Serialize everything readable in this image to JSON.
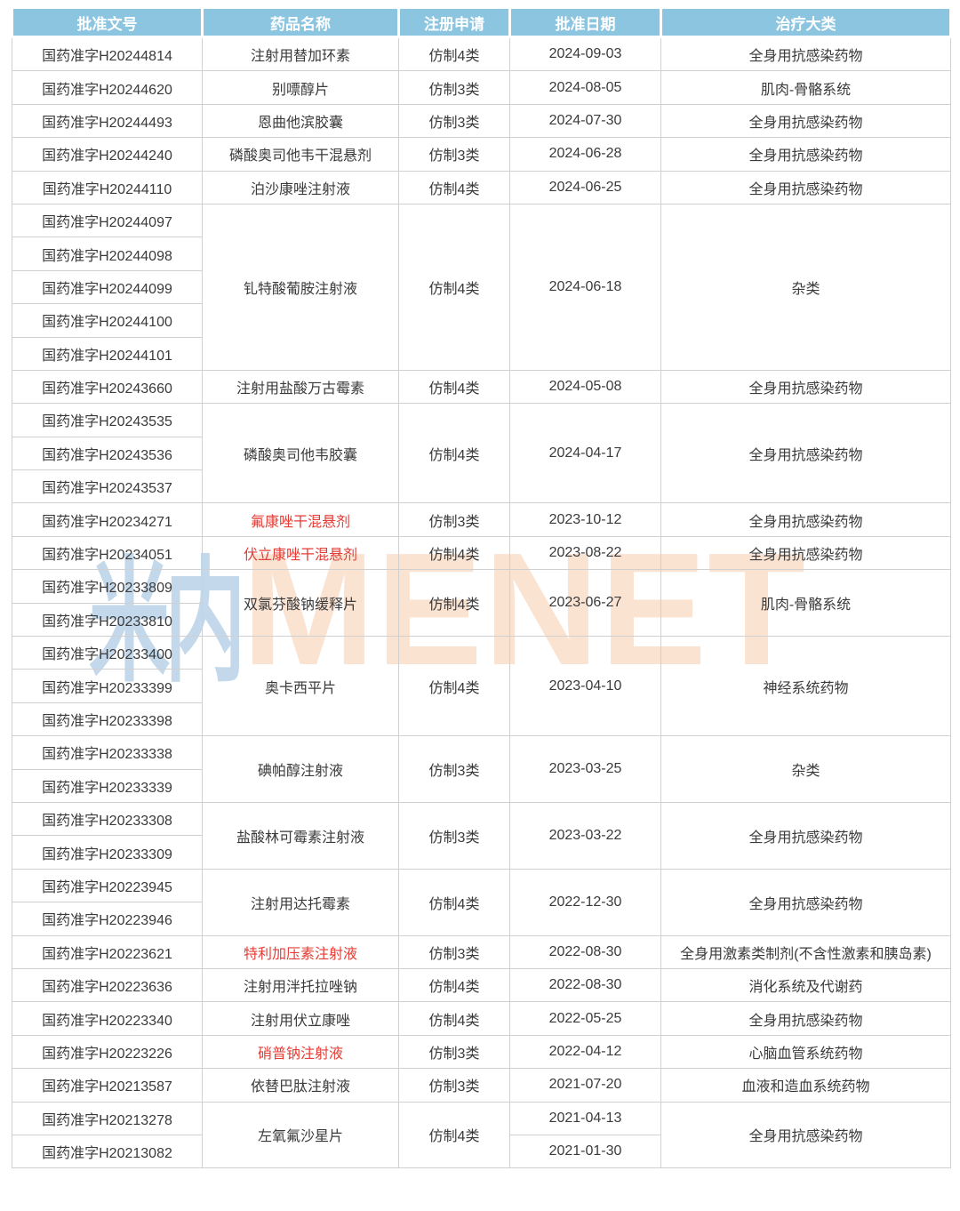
{
  "colors": {
    "header_bg": "#8cc5e0",
    "header_text": "#ffffff",
    "body_text": "#3a3a3a",
    "red_drug_name": "#e53c35",
    "cell_border": "#d0d0d0",
    "watermark_cn_blue": "#92b8d8",
    "watermark_en_orange": "#f3a26a"
  },
  "watermark": {
    "cn": "米内",
    "en": "MENET"
  },
  "table": {
    "columns": [
      {
        "id": "approval-no",
        "label": "批准文号"
      },
      {
        "id": "drug-name",
        "label": "药品名称"
      },
      {
        "id": "registration-type",
        "label": "注册申请"
      },
      {
        "id": "approval-date",
        "label": "批准日期"
      },
      {
        "id": "therapeutic-category",
        "label": "治疗大类"
      }
    ],
    "groups": [
      {
        "approvals": [
          "国药准字H20244814"
        ],
        "drug": "注射用替加环素",
        "red": false,
        "reg": "仿制4类",
        "dates": [
          "2024-09-03"
        ],
        "category": "全身用抗感染药物"
      },
      {
        "approvals": [
          "国药准字H20244620"
        ],
        "drug": "别嘌醇片",
        "red": false,
        "reg": "仿制3类",
        "dates": [
          "2024-08-05"
        ],
        "category": "肌肉-骨骼系统"
      },
      {
        "approvals": [
          "国药准字H20244493"
        ],
        "drug": "恩曲他滨胶囊",
        "red": false,
        "reg": "仿制3类",
        "dates": [
          "2024-07-30"
        ],
        "category": "全身用抗感染药物"
      },
      {
        "approvals": [
          "国药准字H20244240"
        ],
        "drug": "磷酸奥司他韦干混悬剂",
        "red": false,
        "reg": "仿制3类",
        "dates": [
          "2024-06-28"
        ],
        "category": "全身用抗感染药物"
      },
      {
        "approvals": [
          "国药准字H20244110"
        ],
        "drug": "泊沙康唑注射液",
        "red": false,
        "reg": "仿制4类",
        "dates": [
          "2024-06-25"
        ],
        "category": "全身用抗感染药物"
      },
      {
        "approvals": [
          "国药准字H20244097",
          "国药准字H20244098",
          "国药准字H20244099",
          "国药准字H20244100",
          "国药准字H20244101"
        ],
        "drug": "钆特酸葡胺注射液",
        "red": false,
        "reg": "仿制4类",
        "dates": [
          "2024-06-18"
        ],
        "category": "杂类"
      },
      {
        "approvals": [
          "国药准字H20243660"
        ],
        "drug": "注射用盐酸万古霉素",
        "red": false,
        "reg": "仿制4类",
        "dates": [
          "2024-05-08"
        ],
        "category": "全身用抗感染药物"
      },
      {
        "approvals": [
          "国药准字H20243535",
          "国药准字H20243536",
          "国药准字H20243537"
        ],
        "drug": "磷酸奥司他韦胶囊",
        "red": false,
        "reg": "仿制4类",
        "dates": [
          "2024-04-17"
        ],
        "category": "全身用抗感染药物"
      },
      {
        "approvals": [
          "国药准字H20234271"
        ],
        "drug": "氟康唑干混悬剂",
        "red": true,
        "reg": "仿制3类",
        "dates": [
          "2023-10-12"
        ],
        "category": "全身用抗感染药物"
      },
      {
        "approvals": [
          "国药准字H20234051"
        ],
        "drug": "伏立康唑干混悬剂",
        "red": true,
        "reg": "仿制4类",
        "dates": [
          "2023-08-22"
        ],
        "category": "全身用抗感染药物"
      },
      {
        "approvals": [
          "国药准字H20233809",
          "国药准字H20233810"
        ],
        "drug": "双氯芬酸钠缓释片",
        "red": false,
        "reg": "仿制4类",
        "dates": [
          "2023-06-27"
        ],
        "category": "肌肉-骨骼系统"
      },
      {
        "approvals": [
          "国药准字H20233400",
          "国药准字H20233399",
          "国药准字H20233398"
        ],
        "drug": "奥卡西平片",
        "red": false,
        "reg": "仿制4类",
        "dates": [
          "2023-04-10"
        ],
        "category": "神经系统药物"
      },
      {
        "approvals": [
          "国药准字H20233338",
          "国药准字H20233339"
        ],
        "drug": "碘帕醇注射液",
        "red": false,
        "reg": "仿制3类",
        "dates": [
          "2023-03-25"
        ],
        "category": "杂类"
      },
      {
        "approvals": [
          "国药准字H20233308",
          "国药准字H20233309"
        ],
        "drug": "盐酸林可霉素注射液",
        "red": false,
        "reg": "仿制3类",
        "dates": [
          "2023-03-22"
        ],
        "category": "全身用抗感染药物"
      },
      {
        "approvals": [
          "国药准字H20223945",
          "国药准字H20223946"
        ],
        "drug": "注射用达托霉素",
        "red": false,
        "reg": "仿制4类",
        "dates": [
          "2022-12-30"
        ],
        "category": "全身用抗感染药物"
      },
      {
        "approvals": [
          "国药准字H20223621"
        ],
        "drug": "特利加压素注射液",
        "red": true,
        "reg": "仿制3类",
        "dates": [
          "2022-08-30"
        ],
        "category": "全身用激素类制剂(不含性激素和胰岛素)"
      },
      {
        "approvals": [
          "国药准字H20223636"
        ],
        "drug": "注射用泮托拉唑钠",
        "red": false,
        "reg": "仿制4类",
        "dates": [
          "2022-08-30"
        ],
        "category": "消化系统及代谢药"
      },
      {
        "approvals": [
          "国药准字H20223340"
        ],
        "drug": "注射用伏立康唑",
        "red": false,
        "reg": "仿制4类",
        "dates": [
          "2022-05-25"
        ],
        "category": "全身用抗感染药物"
      },
      {
        "approvals": [
          "国药准字H20223226"
        ],
        "drug": "硝普钠注射液",
        "red": true,
        "reg": "仿制3类",
        "dates": [
          "2022-04-12"
        ],
        "category": "心脑血管系统药物"
      },
      {
        "approvals": [
          "国药准字H20213587"
        ],
        "drug": "依替巴肽注射液",
        "red": false,
        "reg": "仿制3类",
        "dates": [
          "2021-07-20"
        ],
        "category": "血液和造血系统药物"
      },
      {
        "approvals": [
          "国药准字H20213278",
          "国药准字H20213082"
        ],
        "drug": "左氧氟沙星片",
        "red": false,
        "reg": "仿制4类",
        "dates": [
          "2021-04-13",
          "2021-01-30"
        ],
        "category": "全身用抗感染药物"
      }
    ]
  }
}
